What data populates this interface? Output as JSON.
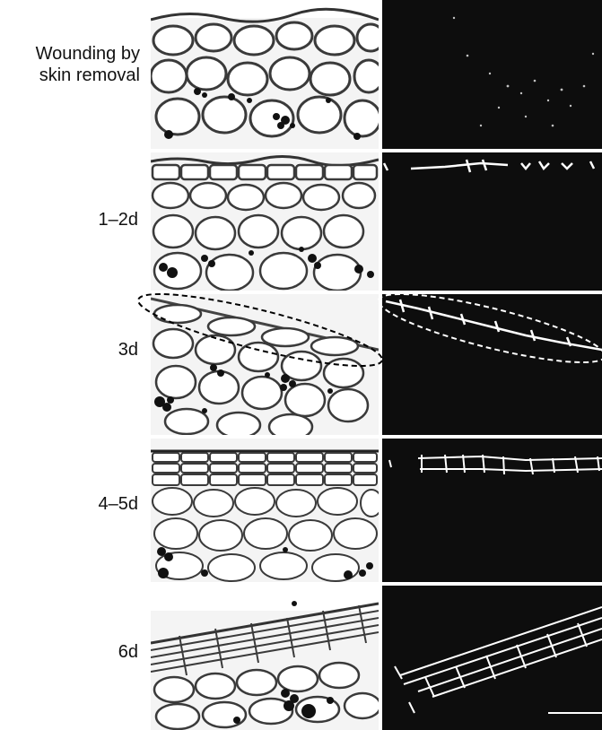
{
  "rows": [
    {
      "label_line1": "Wounding by",
      "label_line2": "skin removal"
    },
    {
      "label_line1": "1–2d"
    },
    {
      "label_line1": "3d"
    },
    {
      "label_line1": "4–5d"
    },
    {
      "label_line1": "6d"
    }
  ],
  "colors": {
    "fluorescence_background": "#0d0d0d",
    "fluorescence_signal": "#ffffff",
    "micrograph_background": "#f4f4f4",
    "cell_wall": "#3a3a3a",
    "starch_grain": "#111111",
    "highlight_outline_left": "#000000",
    "highlight_outline_right": "#ffffff"
  }
}
